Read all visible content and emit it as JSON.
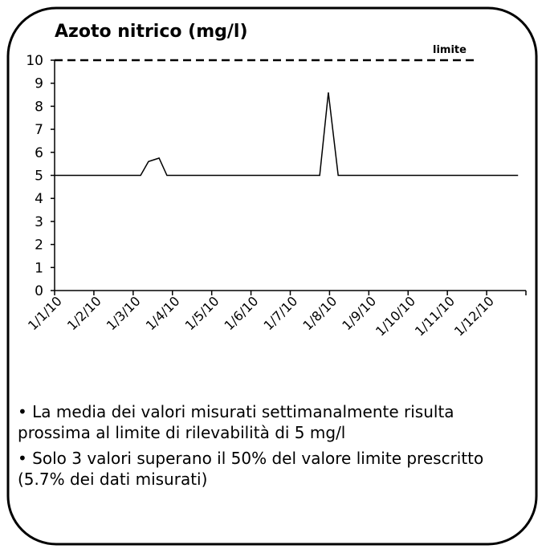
{
  "chart_data": {
    "type": "line",
    "title": "Azoto nitrico  (mg/l)",
    "x": [
      0,
      2.19,
      2.39,
      2.66,
      2.86,
      6.75,
      6.97,
      7.22,
      11.8
    ],
    "series": [
      {
        "name": "Azoto nitrico",
        "color": "#000000",
        "values": [
          5,
          5,
          5.6,
          5.75,
          5,
          5,
          8.6,
          5,
          5
        ]
      }
    ],
    "limit": 10,
    "limit_label": "limite",
    "xlim": [
      0,
      12
    ],
    "xticks": [
      {
        "value": 0,
        "label": "1/1/10"
      },
      {
        "value": 1,
        "label": "1/2/10"
      },
      {
        "value": 2,
        "label": "1/3/10"
      },
      {
        "value": 3,
        "label": "1/4/10"
      },
      {
        "value": 4,
        "label": "1/5/10"
      },
      {
        "value": 5,
        "label": "1/6/10"
      },
      {
        "value": 6,
        "label": "1/7/10"
      },
      {
        "value": 7,
        "label": "1/8/10"
      },
      {
        "value": 8,
        "label": "1/9/10"
      },
      {
        "value": 9,
        "label": "1/10/10"
      },
      {
        "value": 10,
        "label": "1/11/10"
      },
      {
        "value": 11,
        "label": "1/12/10"
      },
      12
    ],
    "ylim": [
      0,
      10
    ],
    "yticks": [
      0,
      1,
      2,
      3,
      4,
      5,
      6,
      7,
      8,
      9,
      10
    ],
    "grid": false,
    "notes": [
      "• La media dei valori misurati settimanalmente risulta prossima al limite di rilevabilità di 5 mg/l",
      "• Solo 3 valori superano il 50% del valore limite prescritto (5.7% dei dati misurati)"
    ]
  }
}
